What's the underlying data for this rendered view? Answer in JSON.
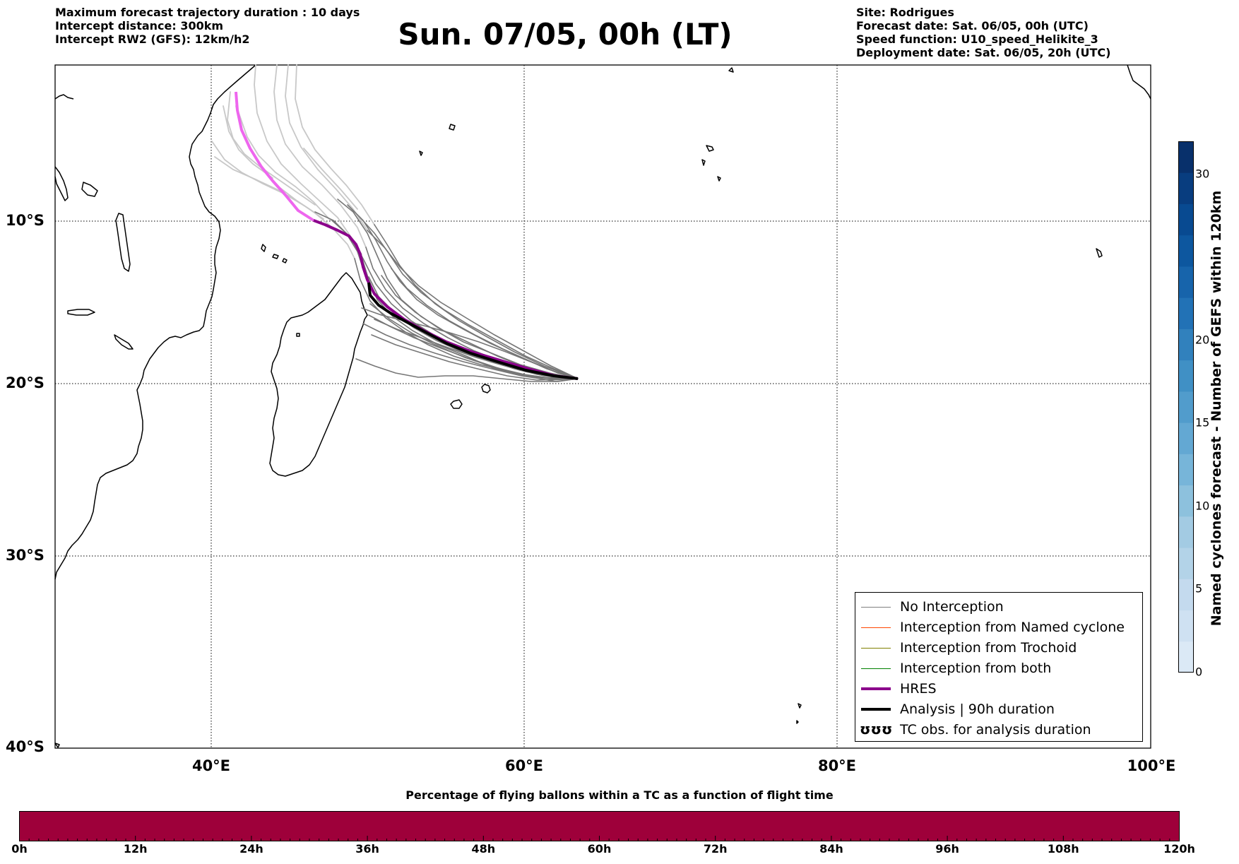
{
  "header_left": {
    "line1": "Maximum forecast trajectory duration : 10 days",
    "line2": "Intercept distance: 300km",
    "line3": "Intercept RW2 (GFS):  12km/h2"
  },
  "title": "Sun. 07/05, 00h (LT)",
  "header_right": {
    "line1": "Site: Rodrigues",
    "line2": "Forecast date: Sat. 06/05, 00h (UTC)",
    "line3": "Speed function: U10_speed_Helikite_3",
    "line4": "Deployment date: Sat. 06/05, 20h (UTC)"
  },
  "map": {
    "lat_labels": [
      "10°S",
      "20°S",
      "30°S",
      "40°S"
    ],
    "lon_labels": [
      "40°E",
      "60°E",
      "80°E",
      "100°E"
    ],
    "extent": {
      "lon": [
        30,
        100
      ],
      "lat": [
        -40,
        -1
      ]
    },
    "site": {
      "name": "Rodrigues",
      "lon": 63.4,
      "lat": -19.7
    }
  },
  "legend": {
    "items": [
      {
        "label": "No Interception",
        "color": "#808080"
      },
      {
        "label": "Interception from Named cyclone",
        "color": "#ff4500"
      },
      {
        "label": "Interception from Trochoid",
        "color": "#808000"
      },
      {
        "label": "Interception from both",
        "color": "#008000"
      },
      {
        "label": "HRES",
        "color": "#8b008b"
      },
      {
        "label": "Analysis | 90h duration",
        "color": "#000000"
      },
      {
        "label": "TC obs. for analysis duration",
        "symbol": "ʊʊʊ"
      }
    ]
  },
  "colorbar": {
    "label": "Named cyclones forecast - Number of GEFS within 120km",
    "ticks": [
      "0",
      "5",
      "10",
      "15",
      "20",
      "30"
    ],
    "colors": [
      "#dbe9f6",
      "#cfe1f2",
      "#c4daee",
      "#b3d3e8",
      "#a3cbe3",
      "#8dc1dd",
      "#77b5d9",
      "#63a8d3",
      "#519ccc",
      "#4090c5",
      "#3181bd",
      "#2272b6",
      "#1764ab",
      "#0d579f",
      "#084a91",
      "#083d7f",
      "#08306b"
    ]
  },
  "bottom": {
    "title": "Percentage of flying ballons within a TC as a function of flight time",
    "bar_color": "#9e003a",
    "ticks": [
      "0h",
      "12h",
      "24h",
      "36h",
      "48h",
      "60h",
      "72h",
      "84h",
      "96h",
      "108h",
      "120h"
    ]
  }
}
